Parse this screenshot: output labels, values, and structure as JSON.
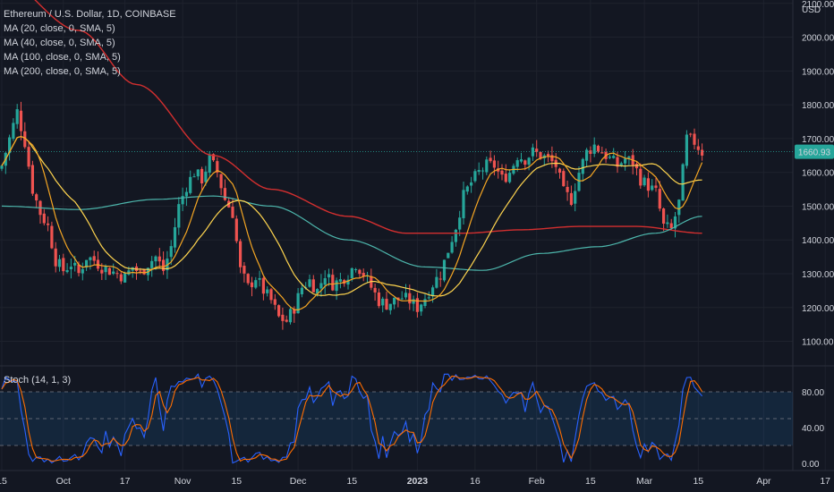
{
  "header": {
    "title": "Ethereum / U.S. Dollar, 1D, COINBASE",
    "indicators": [
      "MA (20, close, 0, SMA, 5)",
      "MA (40, close, 0, SMA, 5)",
      "MA (100, close, 0, SMA, 5)",
      "MA (200, close, 0, SMA, 5)"
    ],
    "currency": "USD"
  },
  "oscillator": {
    "label": "Stoch (14, 1, 3)",
    "ticks": [
      "80.00",
      "40.00",
      "0.00"
    ]
  },
  "colors": {
    "up": "#26a69a",
    "down": "#ef5350",
    "ma20": "#f7525f",
    "ma40": "#f5a623",
    "ma100": "#ffd54f",
    "ma200": "#d32f2f",
    "ma_green": "#4db6ac",
    "stoch_k": "#2962ff",
    "stoch_d": "#ff6d00",
    "band": "rgba(33,150,243,0.12)"
  },
  "chart_data": {
    "type": "candlestick",
    "price_axis_ticks": [
      2100,
      2000,
      1900,
      1800,
      1700,
      1600,
      1500,
      1400,
      1300,
      1200,
      1100
    ],
    "price_axis_labels": [
      "2100.00",
      "2000.00",
      "1900.00",
      "1800.00",
      "1700.00",
      "1600.00",
      "1500.00",
      "1400.00",
      "1300.00",
      "1200.00",
      "1100.00"
    ],
    "ylim": [
      1030,
      2110
    ],
    "last_price": 1660.93,
    "last_price_label": "1660.93",
    "time_labels": [
      "15",
      "Oct",
      "17",
      "Nov",
      "15",
      "Dec",
      "15",
      "2023",
      "16",
      "Feb",
      "15",
      "Mar",
      "15",
      "Apr",
      "17"
    ],
    "time_label_days": [
      0,
      16,
      32,
      47,
      61,
      77,
      91,
      108,
      123,
      139,
      153,
      167,
      181,
      198,
      214
    ],
    "bars_count": 183,
    "close_anchors": [
      [
        0,
        1620
      ],
      [
        2,
        1700
      ],
      [
        4,
        1780
      ],
      [
        6,
        1690
      ],
      [
        8,
        1550
      ],
      [
        10,
        1480
      ],
      [
        12,
        1440
      ],
      [
        14,
        1340
      ],
      [
        16,
        1310
      ],
      [
        18,
        1330
      ],
      [
        20,
        1300
      ],
      [
        22,
        1350
      ],
      [
        24,
        1340
      ],
      [
        26,
        1320
      ],
      [
        28,
        1310
      ],
      [
        30,
        1300
      ],
      [
        32,
        1290
      ],
      [
        34,
        1320
      ],
      [
        36,
        1300
      ],
      [
        38,
        1330
      ],
      [
        40,
        1350
      ],
      [
        42,
        1310
      ],
      [
        44,
        1380
      ],
      [
        46,
        1500
      ],
      [
        48,
        1560
      ],
      [
        50,
        1600
      ],
      [
        52,
        1580
      ],
      [
        54,
        1640
      ],
      [
        56,
        1600
      ],
      [
        58,
        1520
      ],
      [
        60,
        1480
      ],
      [
        62,
        1310
      ],
      [
        64,
        1260
      ],
      [
        66,
        1290
      ],
      [
        68,
        1250
      ],
      [
        70,
        1220
      ],
      [
        72,
        1170
      ],
      [
        74,
        1160
      ],
      [
        76,
        1200
      ],
      [
        78,
        1260
      ],
      [
        80,
        1280
      ],
      [
        82,
        1250
      ],
      [
        84,
        1300
      ],
      [
        86,
        1270
      ],
      [
        88,
        1280
      ],
      [
        90,
        1300
      ],
      [
        92,
        1330
      ],
      [
        94,
        1300
      ],
      [
        96,
        1260
      ],
      [
        98,
        1220
      ],
      [
        100,
        1210
      ],
      [
        102,
        1220
      ],
      [
        104,
        1230
      ],
      [
        106,
        1220
      ],
      [
        108,
        1200
      ],
      [
        110,
        1230
      ],
      [
        112,
        1270
      ],
      [
        114,
        1300
      ],
      [
        116,
        1370
      ],
      [
        118,
        1440
      ],
      [
        120,
        1530
      ],
      [
        122,
        1570
      ],
      [
        124,
        1600
      ],
      [
        126,
        1620
      ],
      [
        128,
        1620
      ],
      [
        130,
        1580
      ],
      [
        132,
        1600
      ],
      [
        134,
        1650
      ],
      [
        136,
        1640
      ],
      [
        138,
        1660
      ],
      [
        140,
        1650
      ],
      [
        142,
        1640
      ],
      [
        144,
        1620
      ],
      [
        146,
        1540
      ],
      [
        148,
        1520
      ],
      [
        150,
        1600
      ],
      [
        152,
        1660
      ],
      [
        154,
        1680
      ],
      [
        156,
        1660
      ],
      [
        158,
        1640
      ],
      [
        160,
        1620
      ],
      [
        162,
        1640
      ],
      [
        164,
        1630
      ],
      [
        166,
        1580
      ],
      [
        168,
        1560
      ],
      [
        170,
        1540
      ],
      [
        172,
        1440
      ],
      [
        174,
        1430
      ],
      [
        176,
        1510
      ],
      [
        178,
        1700
      ],
      [
        180,
        1690
      ],
      [
        182,
        1660
      ]
    ],
    "ma_series": [
      {
        "name": "MA (20, close, 0, SMA, 5)",
        "key": "ma20"
      },
      {
        "name": "MA (40, close, 0, SMA, 5)",
        "key": "ma40"
      },
      {
        "name": "MA (100, close, 0, SMA, 5)",
        "key": "ma100"
      },
      {
        "name": "MA (200, close, 0, SMA, 5)",
        "key": "ma200"
      }
    ],
    "stoch_levels": [
      80,
      50,
      20
    ]
  }
}
